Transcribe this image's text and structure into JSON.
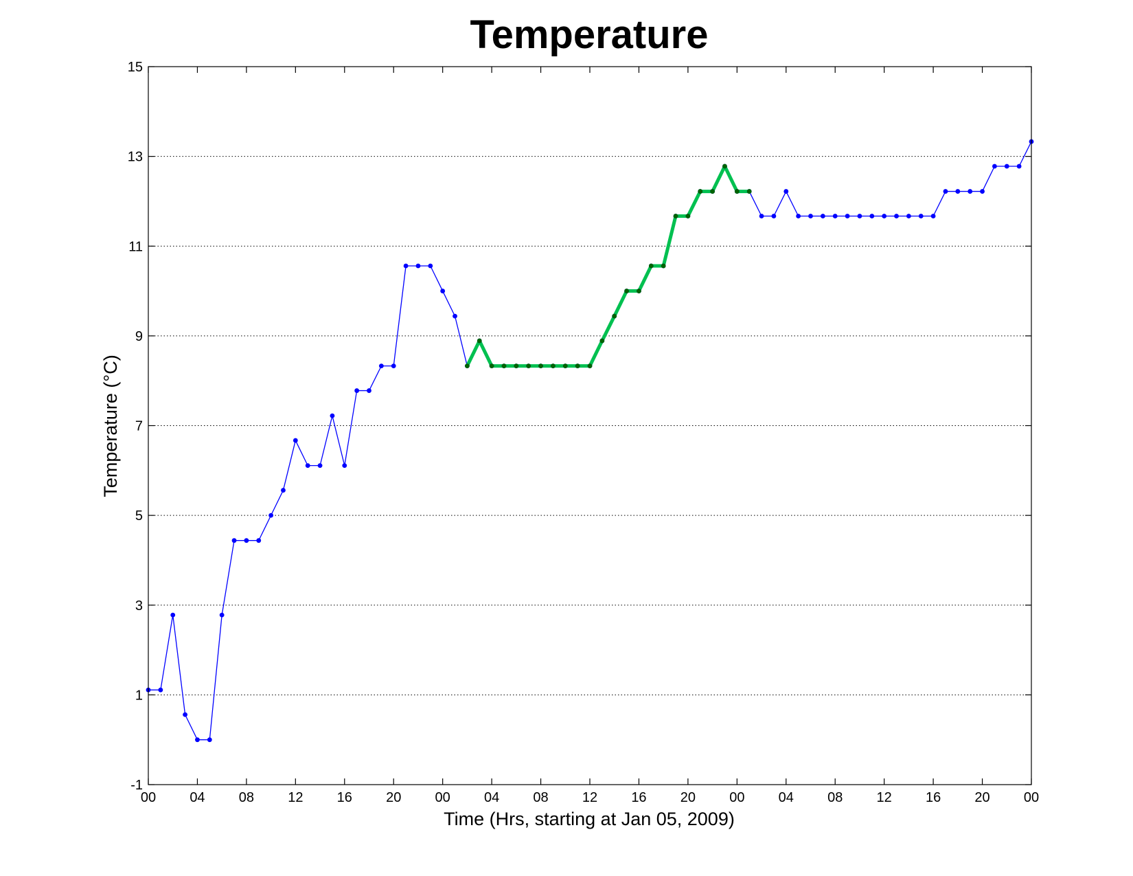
{
  "chart_data": {
    "type": "line",
    "title": "Temperature",
    "xlabel": "Time (Hrs, starting at Jan 05, 2009)",
    "ylabel": "Temperature (°C)",
    "xlim": [
      0,
      72
    ],
    "ylim": [
      -1,
      15
    ],
    "grid": "y-dotted",
    "x_ticks": [
      0,
      4,
      8,
      12,
      16,
      20,
      24,
      28,
      32,
      36,
      40,
      44,
      48,
      52,
      56,
      60,
      64,
      68,
      72
    ],
    "x_tick_labels": [
      "00",
      "04",
      "08",
      "12",
      "16",
      "20",
      "00",
      "04",
      "08",
      "12",
      "16",
      "20",
      "00",
      "04",
      "08",
      "12",
      "16",
      "20",
      "00"
    ],
    "y_ticks": [
      -1,
      1,
      3,
      5,
      7,
      9,
      11,
      13,
      15
    ],
    "y_tick_labels": [
      "-1",
      "1",
      "3",
      "5",
      "7",
      "9",
      "11",
      "13",
      "15"
    ],
    "series": [
      {
        "color": "#0000ff",
        "x": [
          0,
          1,
          2,
          3,
          4,
          5,
          6,
          7,
          8,
          9,
          10,
          11,
          12,
          13,
          14,
          15,
          16,
          17,
          18,
          19,
          20,
          21,
          22,
          23,
          24,
          25,
          26,
          27,
          28,
          29,
          30,
          31,
          32,
          33,
          34,
          35,
          36,
          37,
          38,
          39,
          40,
          41,
          42,
          43,
          44,
          45,
          46,
          47,
          48,
          49,
          50,
          51,
          52,
          53,
          54,
          55,
          56,
          57,
          58,
          59,
          60,
          61,
          62,
          63,
          64,
          65,
          66,
          67,
          68,
          69,
          70,
          71,
          72
        ],
        "y": [
          1.11,
          1.11,
          2.78,
          0.56,
          0.0,
          0.0,
          2.78,
          4.44,
          4.44,
          4.44,
          5.0,
          5.56,
          6.67,
          6.11,
          6.11,
          7.22,
          6.11,
          7.78,
          7.78,
          8.33,
          8.33,
          10.56,
          10.56,
          10.56,
          10.0,
          9.44,
          8.33,
          8.89,
          8.33,
          8.33,
          8.33,
          8.33,
          8.33,
          8.33,
          8.33,
          8.33,
          8.33,
          8.89,
          9.44,
          10.0,
          10.0,
          10.56,
          10.56,
          11.67,
          11.67,
          12.22,
          12.22,
          12.78,
          12.22,
          12.22,
          11.67,
          11.67,
          12.22,
          11.67,
          11.67,
          11.67,
          11.67,
          11.67,
          11.67,
          11.67,
          11.67,
          11.67,
          11.67,
          11.67,
          11.67,
          12.22,
          12.22,
          12.22,
          12.22,
          12.78,
          12.78,
          12.78,
          13.33
        ]
      },
      {
        "color": "#00c050",
        "marker_color": "#006400",
        "x": [
          26,
          27,
          28,
          29,
          30,
          31,
          32,
          33,
          34,
          35,
          36,
          37,
          38,
          39,
          40,
          41,
          42,
          43,
          44,
          45,
          46,
          47,
          48,
          49
        ],
        "y": [
          8.33,
          8.89,
          8.33,
          8.33,
          8.33,
          8.33,
          8.33,
          8.33,
          8.33,
          8.33,
          8.33,
          8.89,
          9.44,
          10.0,
          10.0,
          10.56,
          10.56,
          11.67,
          11.67,
          12.22,
          12.22,
          12.78,
          12.22,
          12.22
        ]
      }
    ]
  }
}
